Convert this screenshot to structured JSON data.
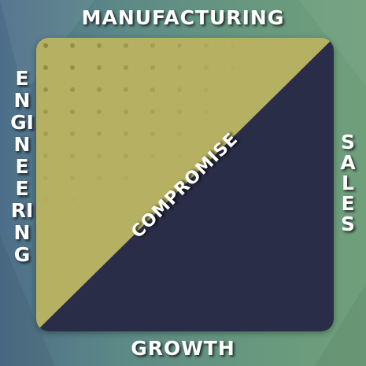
{
  "labels": {
    "top": "MANUFACTURING",
    "bottom": "GROWTH",
    "left": "ENGINEERING",
    "right": "SALES",
    "center": "COMPROMISE"
  },
  "colors": {
    "olive": "#b5b062",
    "navy": "#2a2d47",
    "dot": "#8a8446",
    "text": "#ffffff"
  }
}
